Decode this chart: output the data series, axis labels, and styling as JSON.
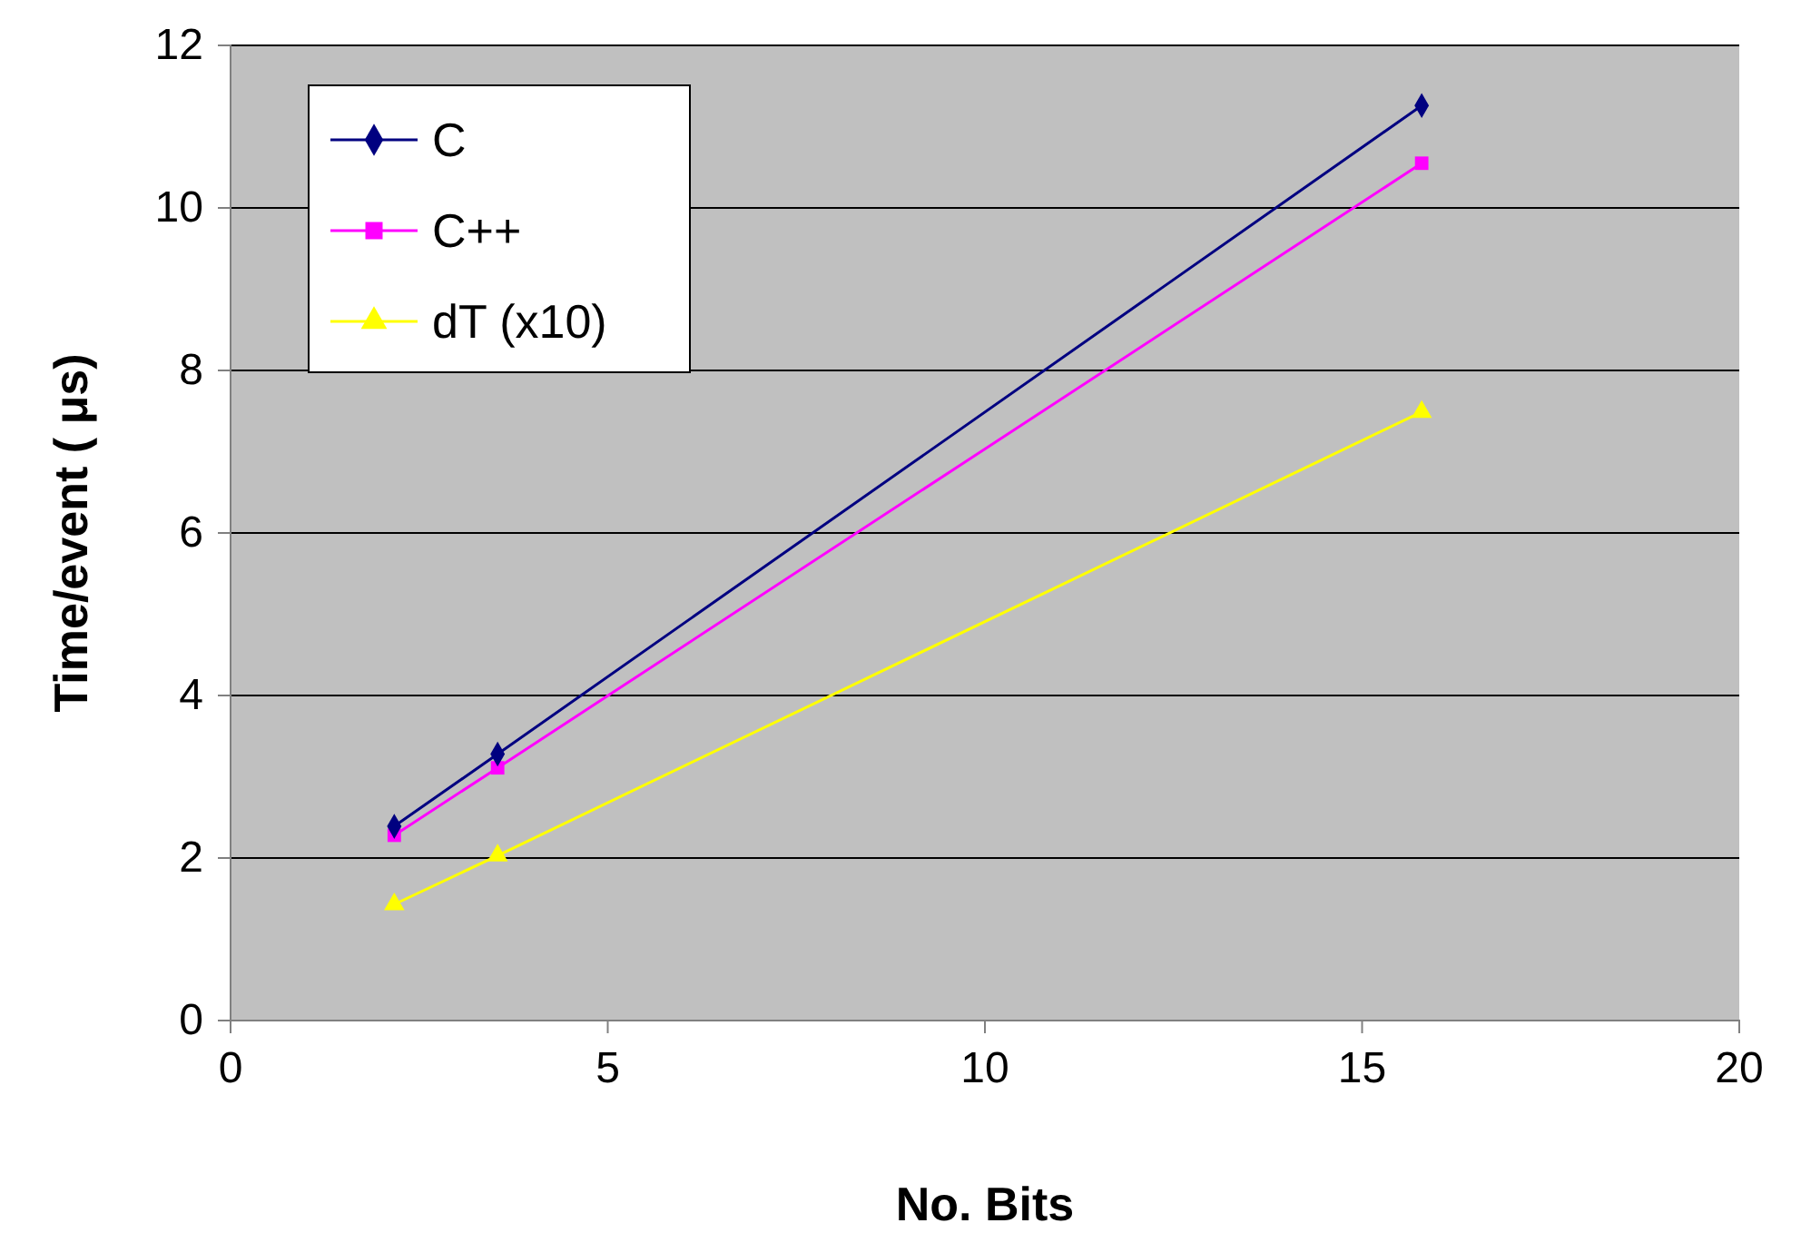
{
  "chart_data": {
    "type": "line",
    "xlabel": "No. Bits",
    "ylabel": "Time/event ( μs)",
    "xlim": [
      0,
      20
    ],
    "xticks": [
      0,
      5,
      10,
      15,
      20
    ],
    "ylim": [
      0,
      12
    ],
    "yticks": [
      0,
      2,
      4,
      6,
      8,
      10,
      12
    ],
    "grid": "y",
    "legend": "top left",
    "line_style": "solid",
    "series": [
      {
        "name": "C",
        "color": "#000080",
        "marker": "diamond",
        "x": [
          2.17,
          3.54,
          15.79
        ],
        "values": [
          2.39,
          3.28,
          11.26
        ]
      },
      {
        "name": "C++",
        "color": "#ff00ff",
        "marker": "square",
        "x": [
          2.17,
          3.54,
          15.79
        ],
        "values": [
          2.28,
          3.11,
          10.55
        ]
      },
      {
        "name": "dT (x10)",
        "color": "#ffff00",
        "marker": "triangle",
        "x": [
          2.17,
          3.54,
          15.79
        ],
        "values": [
          1.43,
          2.03,
          7.49
        ]
      }
    ]
  }
}
